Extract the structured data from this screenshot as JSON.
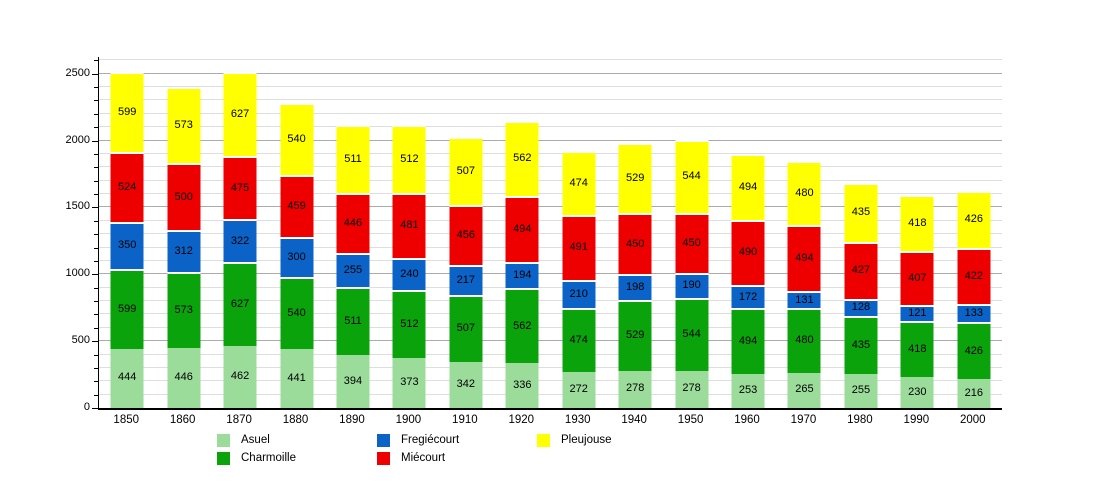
{
  "chart_data": {
    "type": "bar",
    "stacked": true,
    "title": "",
    "xlabel": "",
    "ylabel": "",
    "categories": [
      "1850",
      "1860",
      "1870",
      "1880",
      "1890",
      "1900",
      "1910",
      "1920",
      "1930",
      "1940",
      "1950",
      "1960",
      "1970",
      "1980",
      "1990",
      "2000"
    ],
    "series": [
      {
        "name": "Asuel",
        "color": "#9bdc9b",
        "values": [
          444,
          446,
          462,
          441,
          394,
          373,
          342,
          336,
          272,
          278,
          278,
          253,
          265,
          255,
          230,
          216
        ]
      },
      {
        "name": "Charmoille",
        "color": "#0ba30b",
        "values": [
          599,
          573,
          627,
          540,
          511,
          512,
          507,
          562,
          474,
          529,
          544,
          494,
          480,
          435,
          418,
          426
        ]
      },
      {
        "name": "Fregiécourt",
        "color": "#0b63c8",
        "values": [
          350,
          312,
          322,
          300,
          255,
          240,
          217,
          194,
          210,
          198,
          190,
          172,
          131,
          128,
          121,
          133
        ]
      },
      {
        "name": "Miécourt",
        "color": "#ee0000",
        "values": [
          524,
          500,
          475,
          459,
          446,
          481,
          456,
          494,
          491,
          450,
          450,
          490,
          494,
          427,
          407,
          422
        ]
      },
      {
        "name": "Pleujouse",
        "color": "#ffff00",
        "values": [
          599,
          573,
          627,
          540,
          511,
          512,
          507,
          562,
          474,
          529,
          544,
          494,
          480,
          435,
          418,
          426
        ]
      }
    ],
    "y_ticks": [
      0,
      500,
      1000,
      1500,
      2000,
      2500
    ],
    "ylim": [
      0,
      2625
    ],
    "grid_minor_step": 100,
    "grid_major_step": 500,
    "grid": true,
    "legend_position": "bottom",
    "legend_columns": [
      [
        "Asuel",
        "Charmoille"
      ],
      [
        "Fregiécourt",
        "Miécourt"
      ],
      [
        "Pleujouse"
      ]
    ],
    "axis_color": "#000000",
    "grid_minor_color": "#dedede",
    "grid_major_color": "#ababab",
    "value_labels_shown": true
  }
}
